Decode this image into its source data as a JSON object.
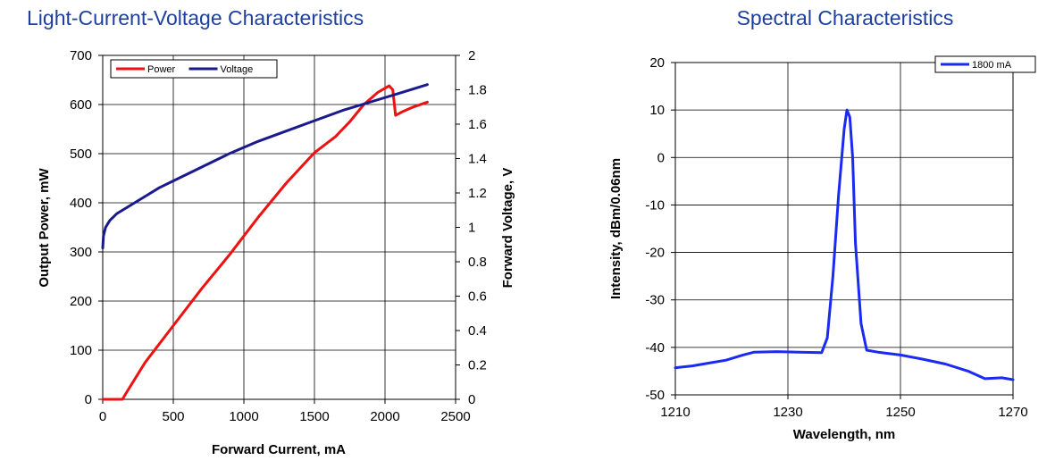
{
  "chart_data": [
    {
      "id": "liv",
      "type": "line",
      "title": "Light-Current-Voltage Characteristics",
      "xlabel": "Forward Current, mA",
      "ylabel": "Output Power, mW",
      "y2label": "Forward Voltage, V",
      "xlim": [
        0,
        2500
      ],
      "ylim": [
        0,
        700
      ],
      "y2lim": [
        0,
        2
      ],
      "xticks": [
        "0",
        "500",
        "1000",
        "1500",
        "2000",
        "2500"
      ],
      "yticks": [
        "0",
        "100",
        "200",
        "300",
        "400",
        "500",
        "600",
        "700"
      ],
      "y2ticks": [
        "0",
        "0.2",
        "0.4",
        "0.6",
        "0.8",
        "1",
        "1.2",
        "1.4",
        "1.6",
        "1.8",
        "2"
      ],
      "grid": true,
      "legend_position": "top-left",
      "series": [
        {
          "name": "Power",
          "color": "#ee1111",
          "axis": "left",
          "x": [
            0,
            140,
            160,
            300,
            500,
            700,
            900,
            1100,
            1300,
            1500,
            1650,
            1750,
            1850,
            1950,
            2030,
            2055,
            2075,
            2120,
            2200,
            2300
          ],
          "y": [
            0,
            0,
            10,
            75,
            150,
            225,
            295,
            370,
            440,
            502,
            535,
            565,
            600,
            625,
            638,
            630,
            578,
            585,
            595,
            605
          ]
        },
        {
          "name": "Voltage",
          "color": "#1a1a8c",
          "axis": "right",
          "x": [
            0,
            5,
            20,
            50,
            100,
            200,
            300,
            400,
            500,
            700,
            900,
            1100,
            1300,
            1500,
            1700,
            1900,
            2100,
            2300
          ],
          "y": [
            0.88,
            0.95,
            1.0,
            1.04,
            1.08,
            1.13,
            1.18,
            1.23,
            1.27,
            1.35,
            1.43,
            1.5,
            1.56,
            1.62,
            1.68,
            1.73,
            1.78,
            1.83
          ]
        }
      ]
    },
    {
      "id": "spectrum",
      "type": "line",
      "title": "Spectral Characteristics",
      "xlabel": "Wavelength, nm",
      "ylabel": "Intensity, dBm/0.06nm",
      "xlim": [
        1210,
        1270
      ],
      "ylim": [
        -50,
        20
      ],
      "xticks": [
        "1210",
        "1230",
        "1250",
        "1270"
      ],
      "yticks": [
        "-50",
        "-40",
        "-30",
        "-20",
        "-10",
        "0",
        "10",
        "20"
      ],
      "grid": true,
      "legend_position": "top-right",
      "series": [
        {
          "name": "1800 mA",
          "color": "#1a2af0",
          "x": [
            1210,
            1213,
            1216,
            1219,
            1222,
            1224,
            1228,
            1232,
            1236,
            1237,
            1238,
            1239,
            1240,
            1240.5,
            1241,
            1241.5,
            1242,
            1243,
            1244,
            1246,
            1250,
            1254,
            1258,
            1262,
            1265,
            1268,
            1270
          ],
          "y": [
            -44.3,
            -43.9,
            -43.3,
            -42.7,
            -41.6,
            -41.0,
            -40.9,
            -41.0,
            -41.1,
            -38.0,
            -25.0,
            -8.0,
            6.0,
            10.0,
            8.5,
            0.0,
            -18.0,
            -35.0,
            -40.6,
            -41.0,
            -41.6,
            -42.5,
            -43.5,
            -45.0,
            -46.6,
            -46.4,
            -46.8
          ]
        }
      ]
    }
  ]
}
